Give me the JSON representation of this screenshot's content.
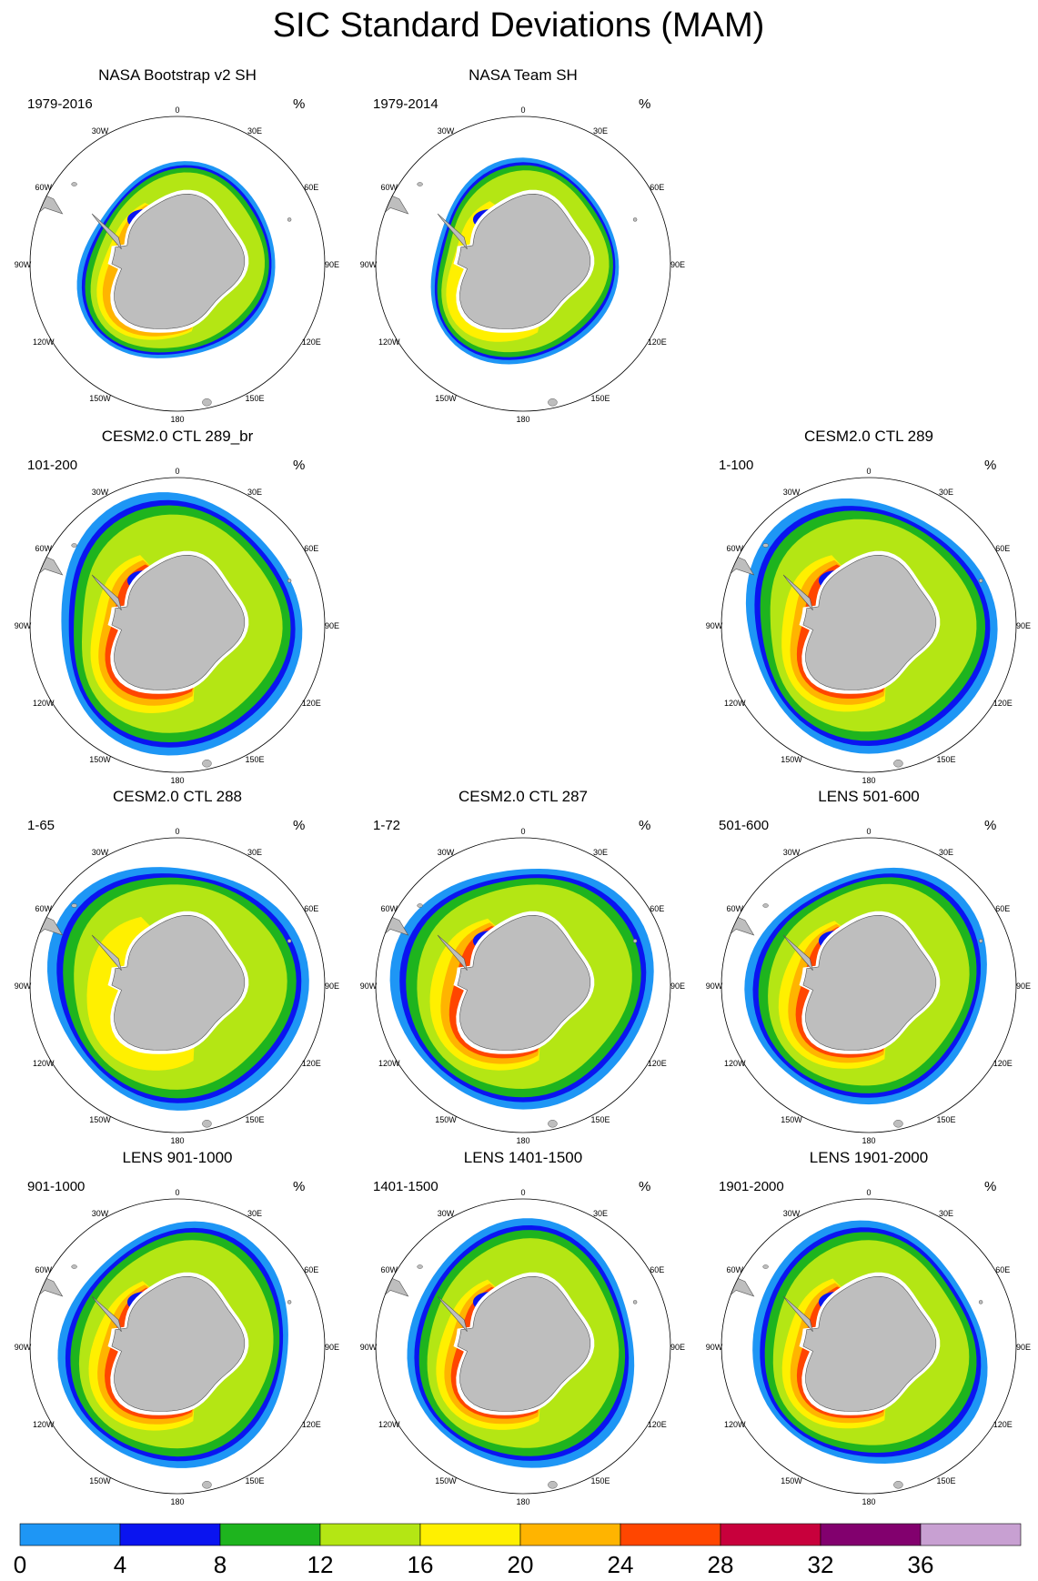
{
  "figure": {
    "title": "SIC Standard Deviations (MAM)",
    "unit_label": "%"
  },
  "map": {
    "lon_labels": [
      "0",
      "30E",
      "60E",
      "90E",
      "120E",
      "150E",
      "180",
      "150W",
      "120W",
      "90W",
      "60W",
      "30W"
    ]
  },
  "palette": {
    "land": "#bebebe",
    "ocean": "#ffffff",
    "bands": [
      "#1e96f5",
      "#0a14f0",
      "#1eb41e",
      "#b4e614",
      "#fff000",
      "#ffb400",
      "#ff4600",
      "#c8003c",
      "#82006e",
      "#c8a0d2"
    ]
  },
  "chart_data": {
    "type": "heatmap",
    "title": "SIC Standard Deviations (MAM)",
    "projection": "south-polar stereographic",
    "units": "%",
    "colorbar": {
      "levels": [
        0,
        4,
        8,
        12,
        16,
        20,
        24,
        28,
        32,
        36
      ],
      "tick_labels": [
        "0",
        "4",
        "8",
        "12",
        "16",
        "20",
        "24",
        "28",
        "32",
        "36"
      ],
      "colors": [
        "#1e96f5",
        "#0a14f0",
        "#1eb41e",
        "#b4e614",
        "#fff000",
        "#ffb400",
        "#ff4600",
        "#c8003c",
        "#82006e",
        "#c8a0d2"
      ]
    },
    "panels": [
      {
        "id": "p1",
        "title": "NASA Bootstrap v2 SH",
        "period": "1979-2016",
        "peak_band": 5,
        "ice_extent": 0.84,
        "polynya": "weddell"
      },
      {
        "id": "p2",
        "title": "NASA Team SH",
        "period": "1979-2014",
        "peak_band": 4,
        "ice_extent": 0.84,
        "polynya": "weddell"
      },
      {
        "id": "p3",
        "title": "CESM2.0 CTL 289_br",
        "period": "101-200",
        "peak_band": 6,
        "ice_extent": 1.08,
        "polynya": "weddell"
      },
      {
        "id": "p4",
        "title": "CESM2.0 CTL 289",
        "period": "1-100",
        "peak_band": 6,
        "ice_extent": 1.08,
        "polynya": "weddell"
      },
      {
        "id": "p5",
        "title": "CESM2.0 CTL 288",
        "period": "1-65",
        "peak_band": 4,
        "ice_extent": 1.08,
        "polynya": "none"
      },
      {
        "id": "p6",
        "title": "CESM2.0 CTL 287",
        "period": "1-72",
        "peak_band": 6,
        "ice_extent": 1.08,
        "polynya": "weddell"
      },
      {
        "id": "p7",
        "title": "LENS 501-600",
        "period": "501-600",
        "peak_band": 6,
        "ice_extent": 1.02,
        "polynya": "weddell"
      },
      {
        "id": "p8",
        "title": "LENS 901-1000",
        "period": "901-1000",
        "peak_band": 6,
        "ice_extent": 1.02,
        "polynya": "weddell"
      },
      {
        "id": "p9",
        "title": "LENS 1401-1500",
        "period": "1401-1500",
        "peak_band": 6,
        "ice_extent": 1.02,
        "polynya": "weddell"
      },
      {
        "id": "p10",
        "title": "LENS 1901-2000",
        "period": "1901-2000",
        "peak_band": 6,
        "ice_extent": 1.02,
        "polynya": "weddell"
      }
    ]
  }
}
